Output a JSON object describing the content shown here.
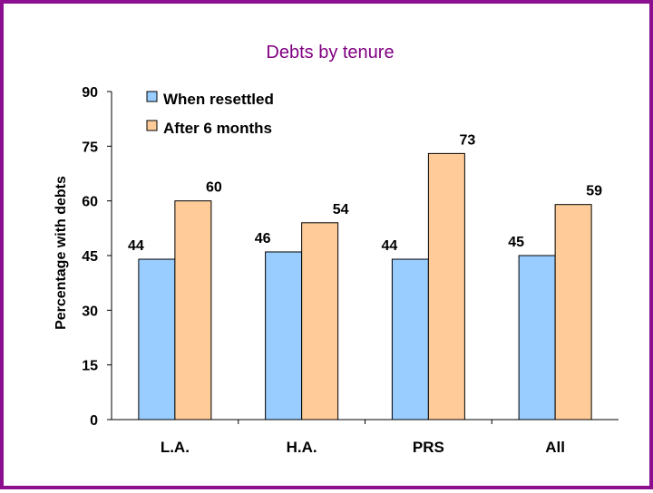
{
  "colors": {
    "frame": "#8b0f8f",
    "title": "#800080",
    "series1": "#99ccff",
    "series2": "#ffcc99",
    "bar_stroke": "#000000"
  },
  "chart_data": {
    "type": "bar",
    "title": "Debts by tenure",
    "xlabel": "",
    "ylabel": "Percentage with debts",
    "ylim": [
      0,
      90
    ],
    "yticks": [
      0,
      15,
      30,
      45,
      60,
      75,
      90
    ],
    "categories": [
      "L.A.",
      "H.A.",
      "PRS",
      "All"
    ],
    "series": [
      {
        "name": "When resettled",
        "values": [
          44,
          46,
          44,
          45
        ]
      },
      {
        "name": "After 6 months",
        "values": [
          60,
          54,
          73,
          59
        ]
      }
    ],
    "legend": "top-left",
    "grid": false
  }
}
